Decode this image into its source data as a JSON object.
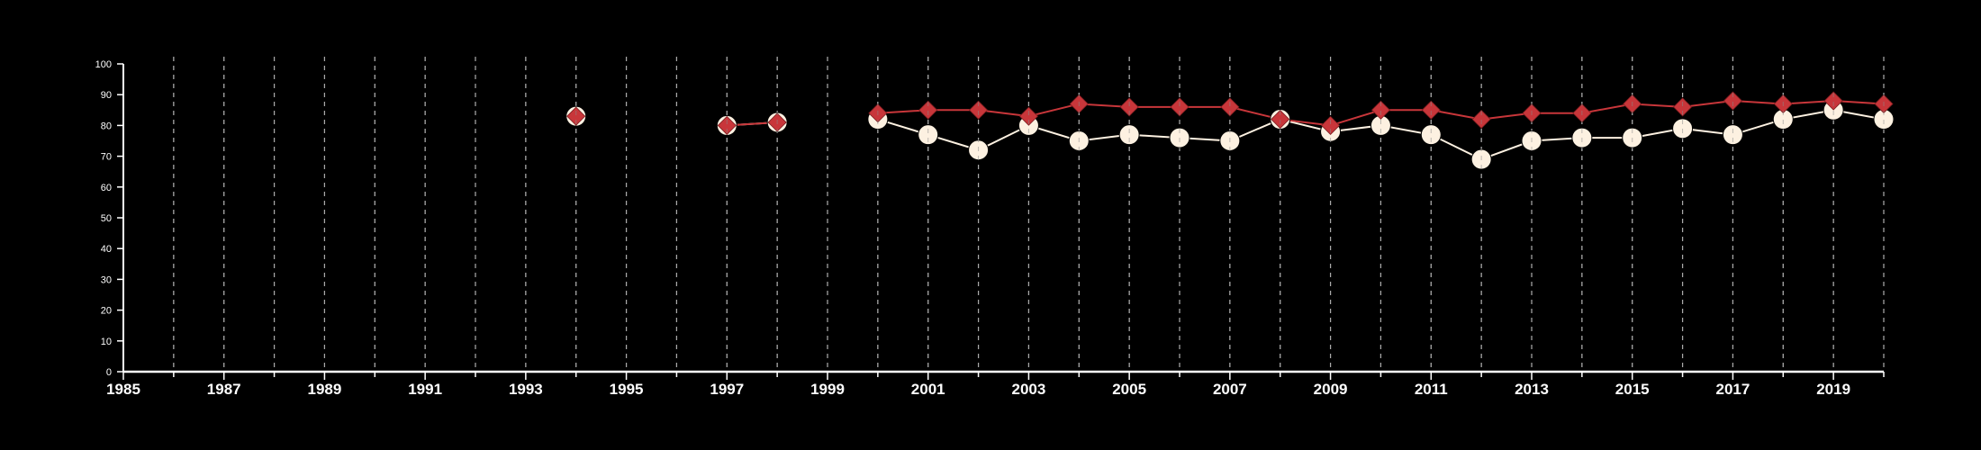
{
  "chart_data": {
    "type": "line",
    "title": "",
    "xlabel": "",
    "ylabel": "",
    "xlim": [
      1985,
      2020
    ],
    "ylim": [
      0,
      100
    ],
    "x_ticks": [
      1985,
      1986,
      1987,
      1988,
      1989,
      1990,
      1991,
      1992,
      1993,
      1994,
      1995,
      1996,
      1997,
      1998,
      1999,
      2000,
      2001,
      2002,
      2003,
      2004,
      2005,
      2006,
      2007,
      2008,
      2009,
      2010,
      2011,
      2012,
      2013,
      2014,
      2015,
      2016,
      2017,
      2018,
      2019,
      2020
    ],
    "x_tick_labels": [
      "1985",
      "1987",
      "1989",
      "1991",
      "1993",
      "1995",
      "1997",
      "1999",
      "2001",
      "2003",
      "2005",
      "2007",
      "2009",
      "2011",
      "2013",
      "2015",
      "2017",
      "2019"
    ],
    "y_ticks": [
      0,
      10,
      20,
      30,
      40,
      50,
      60,
      70,
      80,
      90,
      100
    ],
    "y_tick_labels": [
      "0",
      "10",
      "20",
      "30",
      "40",
      "50",
      "60",
      "70",
      "80",
      "90",
      "100"
    ],
    "grid": "vertical dashed lines at every year",
    "background": "#000000",
    "series": [
      {
        "marker": "circle",
        "color": "#fdf1e1",
        "points": [
          [
            1994,
            83
          ],
          [
            1997,
            80
          ],
          [
            1998,
            81
          ],
          [
            2000,
            82
          ],
          [
            2001,
            77
          ],
          [
            2002,
            72
          ],
          [
            2003,
            80
          ],
          [
            2004,
            75
          ],
          [
            2005,
            77
          ],
          [
            2006,
            76
          ],
          [
            2007,
            75
          ],
          [
            2008,
            82
          ],
          [
            2009,
            78
          ],
          [
            2010,
            80
          ],
          [
            2011,
            77
          ],
          [
            2012,
            69
          ],
          [
            2013,
            75
          ],
          [
            2014,
            76
          ],
          [
            2015,
            76
          ],
          [
            2016,
            79
          ],
          [
            2017,
            77
          ],
          [
            2018,
            82
          ],
          [
            2019,
            85
          ],
          [
            2020,
            82
          ]
        ]
      },
      {
        "marker": "diamond",
        "color": "#c8363a",
        "points": [
          [
            1994,
            83
          ],
          [
            1997,
            80
          ],
          [
            1998,
            81
          ],
          [
            2000,
            84
          ],
          [
            2001,
            85
          ],
          [
            2002,
            85
          ],
          [
            2003,
            83
          ],
          [
            2004,
            87
          ],
          [
            2005,
            86
          ],
          [
            2006,
            86
          ],
          [
            2007,
            86
          ],
          [
            2008,
            82
          ],
          [
            2009,
            80
          ],
          [
            2010,
            85
          ],
          [
            2011,
            85
          ],
          [
            2012,
            82
          ],
          [
            2013,
            84
          ],
          [
            2014,
            84
          ],
          [
            2015,
            87
          ],
          [
            2016,
            86
          ],
          [
            2017,
            88
          ],
          [
            2018,
            87
          ],
          [
            2019,
            88
          ],
          [
            2020,
            87
          ]
        ]
      }
    ]
  }
}
